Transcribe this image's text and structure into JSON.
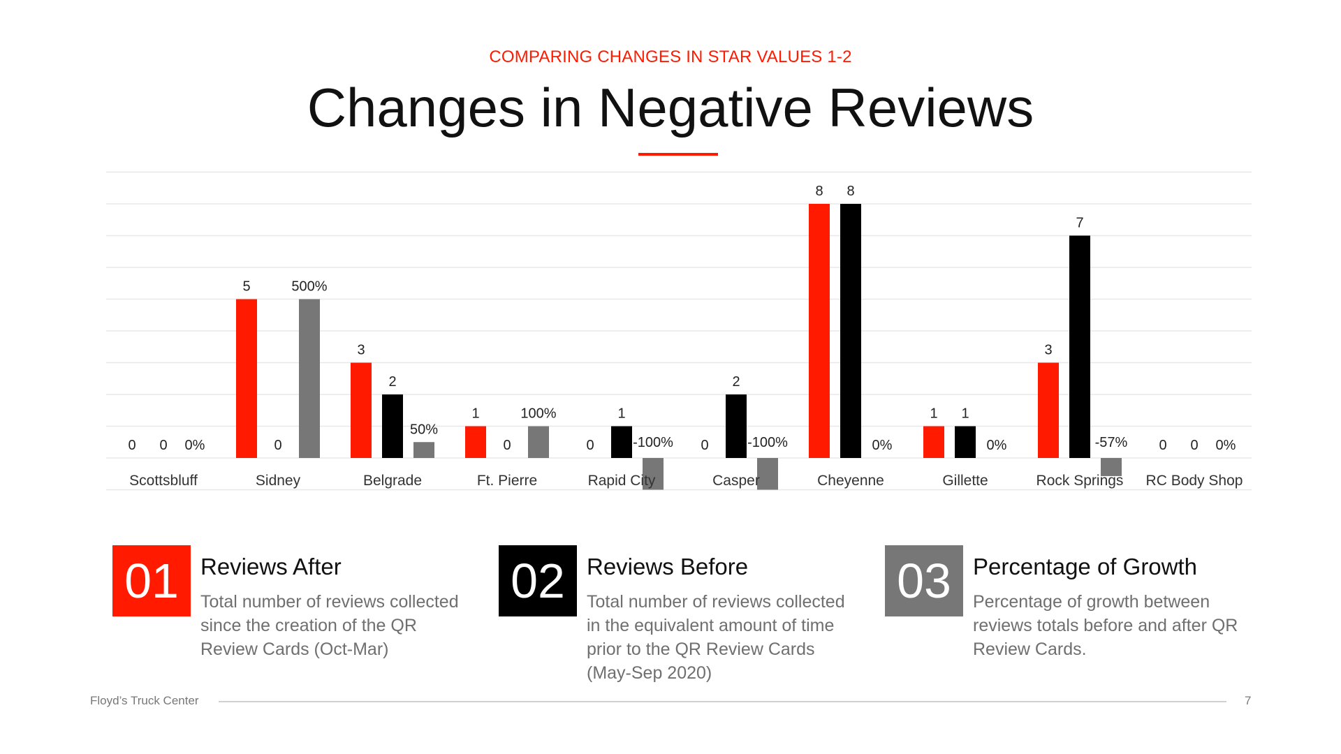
{
  "slide": {
    "subtitle": "COMPARING CHANGES IN STAR VALUES 1-2",
    "title": "Changes in Negative Reviews",
    "footer": "Floyd’s Truck Center",
    "page_number": "7"
  },
  "colors": {
    "after": "#ff1a00",
    "before": "#000000",
    "growth": "#777777",
    "gridline": "#e8e8e8"
  },
  "chart_data": {
    "type": "bar",
    "title": "",
    "xlabel": "",
    "ylabel": "",
    "ylim": [
      -1,
      9
    ],
    "grid": true,
    "categories": [
      "Scottsbluff",
      "Sidney",
      "Belgrade",
      "Ft. Pierre",
      "Rapid City",
      "Casper",
      "Cheyenne",
      "Gillette",
      "Rock Springs",
      "RC Body Shop"
    ],
    "series": [
      {
        "name": "Reviews After",
        "values": [
          0,
          5,
          3,
          1,
          0,
          0,
          8,
          1,
          3,
          0
        ],
        "labels": [
          "0",
          "5",
          "3",
          "1",
          "0",
          "0",
          "8",
          "1",
          "3",
          "0"
        ]
      },
      {
        "name": "Reviews Before",
        "values": [
          0,
          0,
          2,
          0,
          1,
          2,
          8,
          1,
          7,
          0
        ],
        "labels": [
          "0",
          "0",
          "2",
          "0",
          "1",
          "2",
          "8",
          "1",
          "7",
          "0"
        ]
      },
      {
        "name": "Percentage of Growth",
        "values": [
          0,
          5.0,
          0.5,
          1.0,
          -1.0,
          -1.0,
          0,
          0,
          -0.57,
          0
        ],
        "labels": [
          "0%",
          "500%",
          "50%",
          "100%",
          "-100%",
          "-100%",
          "0%",
          "0%",
          "-57%",
          "0%"
        ]
      }
    ]
  },
  "legend_cards": [
    {
      "number": "01",
      "heading": "Reviews After",
      "description": "Total number of reviews collected since the creation of the QR Review Cards (Oct-Mar)"
    },
    {
      "number": "02",
      "heading": "Reviews Before",
      "description": "Total number of reviews collected in the equivalent amount of time prior to the QR Review Cards (May-Sep 2020)"
    },
    {
      "number": "03",
      "heading": "Percentage of Growth",
      "description": "Percentage of growth between reviews totals before and after QR Review Cards."
    }
  ]
}
